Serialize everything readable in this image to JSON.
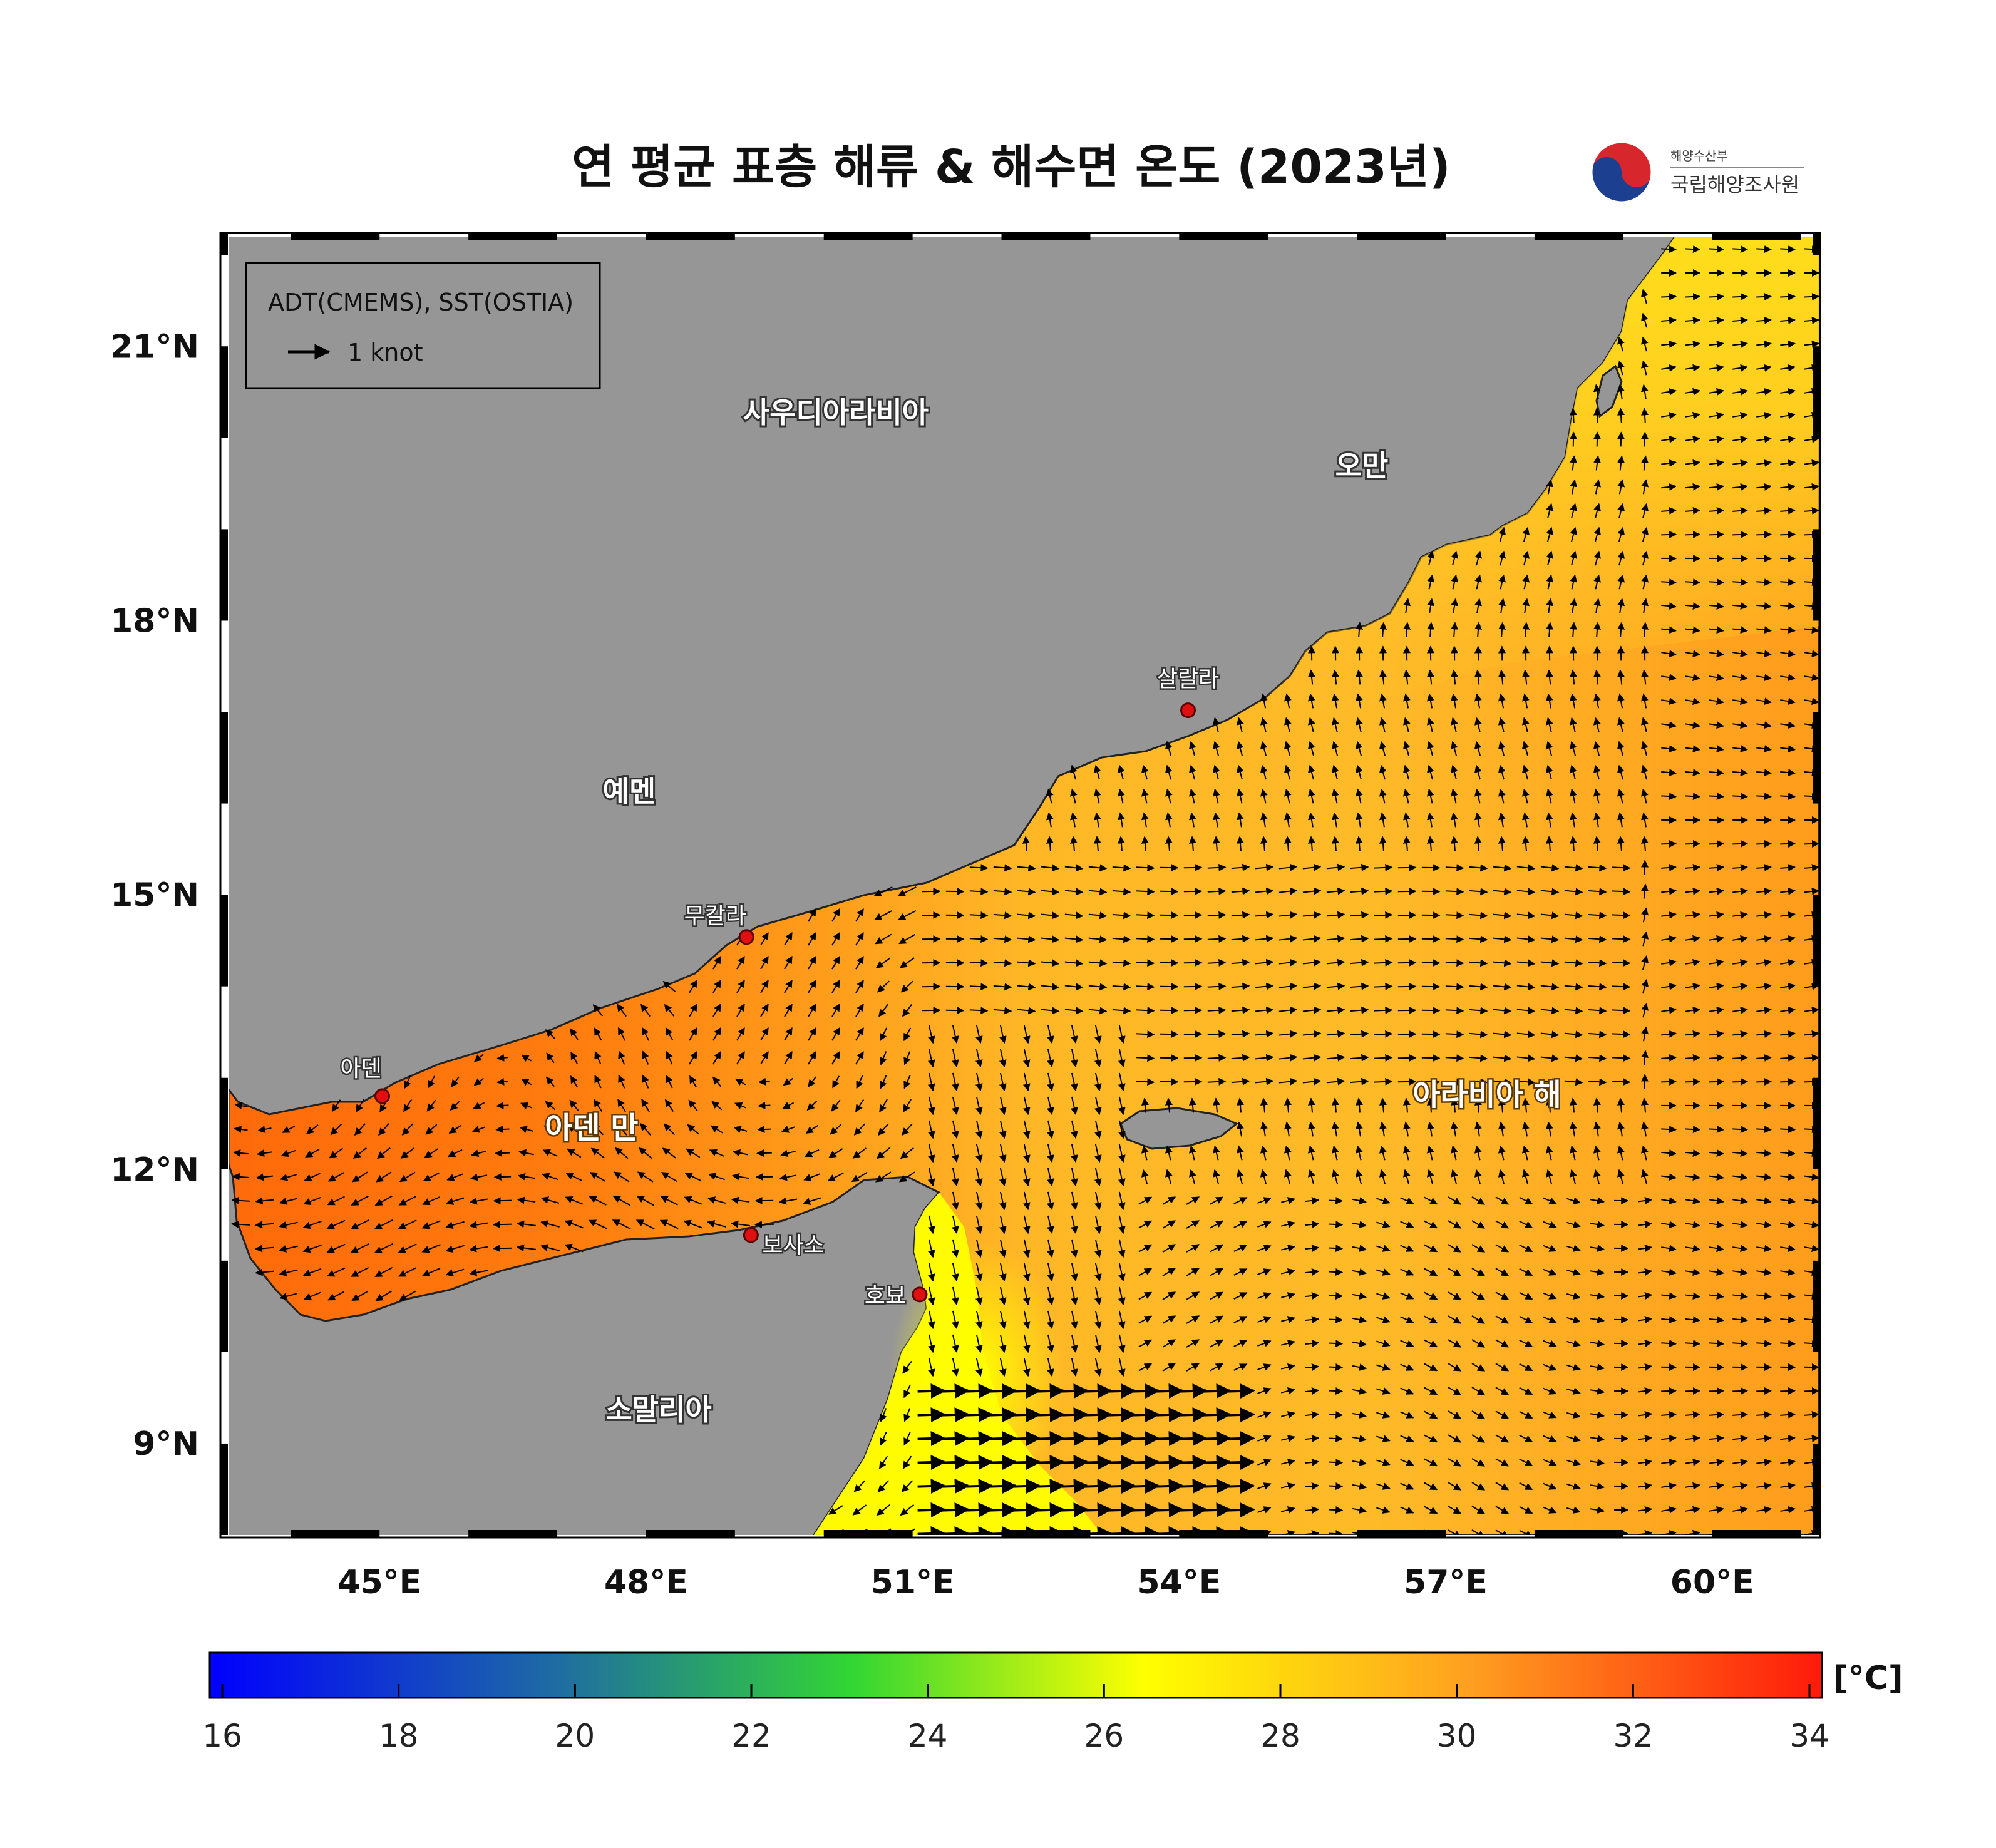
{
  "title": "연 평균 표층 해류 & 해수면 온도 (2023년)",
  "agency": {
    "ministry": "해양수산부",
    "name": "국립해양조사원"
  },
  "legend": {
    "source": "ADT(CMEMS), SST(OSTIA)",
    "arrow_label": "1 knot"
  },
  "map": {
    "lon_range": [
      43.3,
      61.2
    ],
    "lat_range": [
      8.0,
      22.2
    ],
    "lon_ticks": [
      "45°E",
      "48°E",
      "51°E",
      "54°E",
      "57°E",
      "60°E"
    ],
    "lat_ticks": [
      "21°N",
      "18°N",
      "15°N",
      "12°N",
      "9°N"
    ],
    "land_color": "#969696",
    "country_labels": {
      "saudi": "사우디아라비아",
      "oman": "오만",
      "yemen": "예멘",
      "somalia": "소말리아"
    },
    "sea_labels": {
      "gulf_of_aden": "아덴 만",
      "arabian_sea": "아라비아 해"
    },
    "cities": [
      {
        "name": "살랄라",
        "lon": 54.1,
        "lat": 17.02
      },
      {
        "name": "무칼라",
        "lon": 49.13,
        "lat": 14.54
      },
      {
        "name": "아덴",
        "lon": 45.03,
        "lat": 12.8
      },
      {
        "name": "보사소",
        "lon": 49.18,
        "lat": 11.28
      },
      {
        "name": "호뵤",
        "lon": 51.08,
        "lat": 10.63
      }
    ]
  },
  "colorbar": {
    "unit": "[°C]",
    "min": 16,
    "max": 34,
    "ticks": [
      "16",
      "18",
      "20",
      "22",
      "24",
      "26",
      "28",
      "30",
      "32",
      "34"
    ],
    "colors": [
      "#0000ff",
      "#1f6fa0",
      "#33d633",
      "#ffff00",
      "#ff9a1f",
      "#ff1a0a"
    ]
  }
}
